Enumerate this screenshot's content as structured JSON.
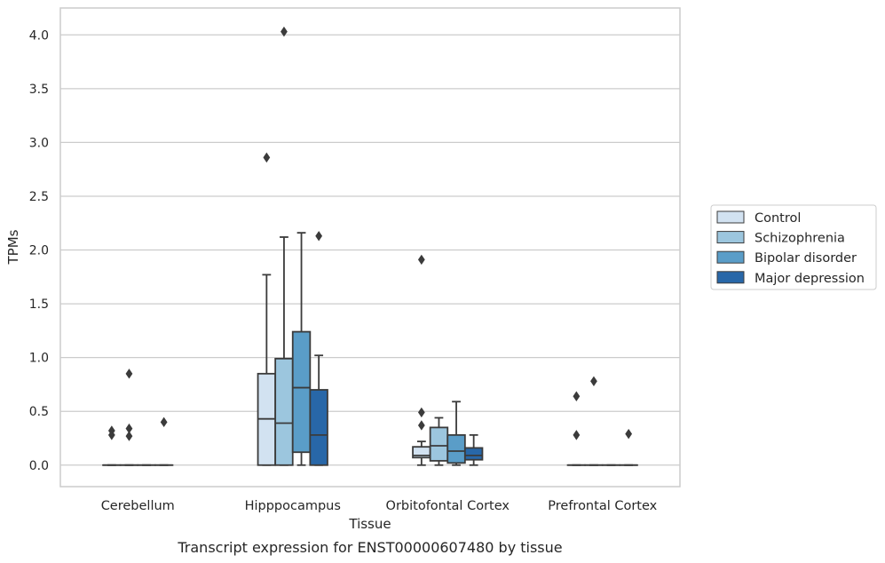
{
  "chart_data": {
    "type": "box",
    "title": "",
    "caption": "Transcript expression for ENST00000607480 by tissue",
    "xlabel": "Tissue",
    "ylabel": "TPMs",
    "ylim": [
      -0.2,
      4.25
    ],
    "yticks": [
      "0.0",
      "0.5",
      "1.0",
      "1.5",
      "2.0",
      "2.5",
      "3.0",
      "3.5",
      "4.0"
    ],
    "ytick_values": [
      0,
      0.5,
      1.0,
      1.5,
      2.0,
      2.5,
      3.0,
      3.5,
      4.0
    ],
    "grid": "horizontal",
    "legend_position": "right",
    "categories": [
      "Cerebellum",
      "Hipppocampus",
      "Orbitofontal Cortex",
      "Prefrontal Cortex"
    ],
    "series": [
      {
        "name": "Control",
        "color": "#d2e2f1",
        "boxes": [
          {
            "q1": 0,
            "median": 0,
            "q3": 0,
            "whisker_low": 0,
            "whisker_high": 0,
            "outliers": [
              0.32,
              0.28
            ]
          },
          {
            "q1": 0,
            "median": 0.43,
            "q3": 0.85,
            "whisker_low": 0,
            "whisker_high": 1.77,
            "outliers": [
              2.86
            ]
          },
          {
            "q1": 0.07,
            "median": 0.09,
            "q3": 0.17,
            "whisker_low": 0,
            "whisker_high": 0.22,
            "outliers": [
              1.91,
              0.49,
              0.37
            ]
          },
          {
            "q1": 0,
            "median": 0,
            "q3": 0,
            "whisker_low": 0,
            "whisker_high": 0,
            "outliers": [
              0.64,
              0.28
            ]
          }
        ]
      },
      {
        "name": "Schizophrenia",
        "color": "#9cc6de",
        "boxes": [
          {
            "q1": 0,
            "median": 0,
            "q3": 0,
            "whisker_low": 0,
            "whisker_high": 0,
            "outliers": [
              0.85,
              0.34,
              0.27
            ]
          },
          {
            "q1": 0,
            "median": 0.39,
            "q3": 0.99,
            "whisker_low": 0,
            "whisker_high": 2.12,
            "outliers": [
              4.03
            ]
          },
          {
            "q1": 0.04,
            "median": 0.18,
            "q3": 0.35,
            "whisker_low": 0,
            "whisker_high": 0.44,
            "outliers": []
          },
          {
            "q1": 0,
            "median": 0,
            "q3": 0,
            "whisker_low": 0,
            "whisker_high": 0,
            "outliers": [
              0.78
            ]
          }
        ]
      },
      {
        "name": "Bipolar disorder",
        "color": "#5a9dc8",
        "boxes": [
          {
            "q1": 0,
            "median": 0,
            "q3": 0,
            "whisker_low": 0,
            "whisker_high": 0,
            "outliers": []
          },
          {
            "q1": 0.12,
            "median": 0.72,
            "q3": 1.24,
            "whisker_low": 0,
            "whisker_high": 2.16,
            "outliers": []
          },
          {
            "q1": 0.02,
            "median": 0.13,
            "q3": 0.28,
            "whisker_low": 0,
            "whisker_high": 0.59,
            "outliers": []
          },
          {
            "q1": 0,
            "median": 0,
            "q3": 0,
            "whisker_low": 0,
            "whisker_high": 0,
            "outliers": []
          }
        ]
      },
      {
        "name": "Major depression",
        "color": "#2867a8",
        "boxes": [
          {
            "q1": 0,
            "median": 0,
            "q3": 0,
            "whisker_low": 0,
            "whisker_high": 0,
            "outliers": [
              0.4
            ]
          },
          {
            "q1": 0,
            "median": 0.28,
            "q3": 0.7,
            "whisker_low": 0,
            "whisker_high": 1.02,
            "outliers": [
              2.13
            ]
          },
          {
            "q1": 0.05,
            "median": 0.09,
            "q3": 0.16,
            "whisker_low": 0,
            "whisker_high": 0.28,
            "outliers": []
          },
          {
            "q1": 0,
            "median": 0,
            "q3": 0,
            "whisker_low": 0,
            "whisker_high": 0,
            "outliers": [
              0.29
            ]
          }
        ]
      }
    ]
  }
}
